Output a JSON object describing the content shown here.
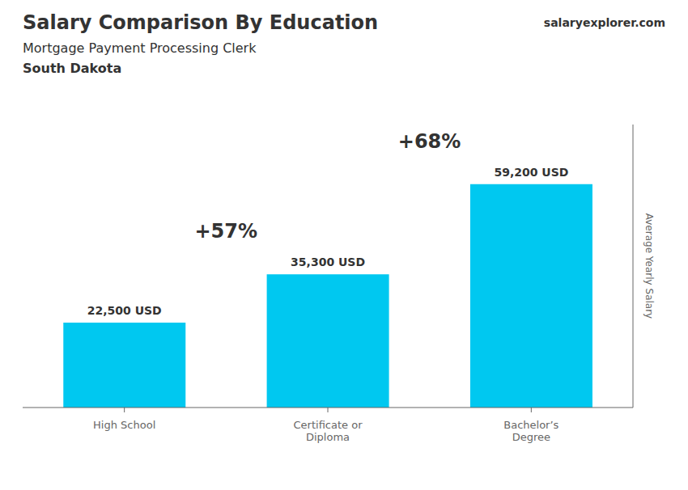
{
  "chart_data": {
    "type": "bar",
    "title": "Salary Comparison By Education",
    "subtitle": "Mortgage Payment Processing Clerk",
    "location": "South Dakota",
    "watermark": [
      "salary",
      "explorer",
      ".com"
    ],
    "y_label": "Average Yearly Salary",
    "categories": [
      "High School",
      "Certificate or\nDiploma",
      "Bachelor’s\nDegree"
    ],
    "values": [
      22500,
      35300,
      59200
    ],
    "value_labels": [
      "22,500 USD",
      "35,300 USD",
      "59,200 USD"
    ],
    "annotations": [
      "+57%",
      "+68%"
    ],
    "data_labels": true,
    "color": "#00c8f0",
    "ylim": [
      0,
      75000
    ],
    "tick_labels": "x",
    "grid": false
  }
}
